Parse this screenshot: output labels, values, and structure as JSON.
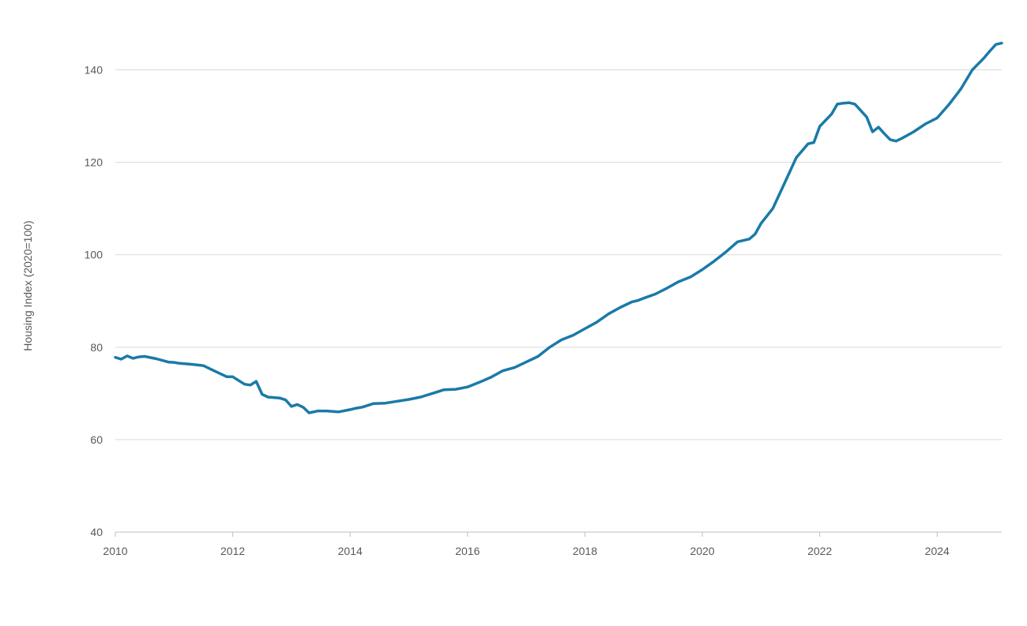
{
  "colors": {
    "series": "#1a7aa8",
    "grid": "#d9d9d9",
    "text": "#595959"
  },
  "chart_data": {
    "type": "line",
    "title": "",
    "xlabel": "",
    "ylabel": "Housing Index (2020=100)",
    "xlim": [
      2010,
      2025.1
    ],
    "ylim": [
      40,
      150
    ],
    "x_ticks": [
      2010,
      2012,
      2014,
      2016,
      2018,
      2020,
      2022,
      2024
    ],
    "y_ticks": [
      40,
      60,
      80,
      100,
      120,
      140
    ],
    "grid": "horizontal",
    "legend": "none",
    "series": [
      {
        "x": [
          2010.0,
          2010.1,
          2010.2,
          2010.3,
          2010.4,
          2010.5,
          2010.7,
          2010.9,
          2011.0,
          2011.1,
          2011.3,
          2011.5,
          2011.7,
          2011.9,
          2012.0,
          2012.2,
          2012.3,
          2012.4,
          2012.5,
          2012.6,
          2012.8,
          2012.9,
          2013.0,
          2013.1,
          2013.2,
          2013.3,
          2013.45,
          2013.6,
          2013.8,
          2014.0,
          2014.1,
          2014.2,
          2014.4,
          2014.6,
          2014.8,
          2015.0,
          2015.2,
          2015.4,
          2015.6,
          2015.8,
          2016.0,
          2016.2,
          2016.4,
          2016.6,
          2016.8,
          2017.0,
          2017.2,
          2017.4,
          2017.6,
          2017.8,
          2018.0,
          2018.2,
          2018.4,
          2018.6,
          2018.8,
          2018.9,
          2019.0,
          2019.2,
          2019.4,
          2019.6,
          2019.8,
          2020.0,
          2020.2,
          2020.4,
          2020.6,
          2020.8,
          2020.9,
          2021.0,
          2021.2,
          2021.4,
          2021.6,
          2021.8,
          2021.9,
          2022.0,
          2022.2,
          2022.3,
          2022.4,
          2022.5,
          2022.6,
          2022.8,
          2022.9,
          2023.0,
          2023.1,
          2023.2,
          2023.3,
          2023.4,
          2023.6,
          2023.8,
          2024.0,
          2024.2,
          2024.4,
          2024.6,
          2024.8,
          2024.9,
          2025.0,
          2025.1
        ],
        "values": [
          77.8,
          77.4,
          78.1,
          77.6,
          77.9,
          78.0,
          77.5,
          76.8,
          76.7,
          76.5,
          76.3,
          76.0,
          74.8,
          73.6,
          73.6,
          72.0,
          71.8,
          72.6,
          69.8,
          69.2,
          69.0,
          68.6,
          67.2,
          67.6,
          67.0,
          65.8,
          66.2,
          66.2,
          66.0,
          66.5,
          66.8,
          67.0,
          67.8,
          67.9,
          68.3,
          68.7,
          69.2,
          70.0,
          70.8,
          70.9,
          71.4,
          72.4,
          73.5,
          74.9,
          75.6,
          76.8,
          78.0,
          80.0,
          81.6,
          82.6,
          84.0,
          85.4,
          87.2,
          88.6,
          89.8,
          90.1,
          90.6,
          91.5,
          92.8,
          94.2,
          95.2,
          96.8,
          98.6,
          100.6,
          102.8,
          103.4,
          104.5,
          106.8,
          110.0,
          115.5,
          121.0,
          124.0,
          124.3,
          127.8,
          130.4,
          132.6,
          132.8,
          132.9,
          132.6,
          129.8,
          126.6,
          127.6,
          126.2,
          124.9,
          124.6,
          125.2,
          126.6,
          128.3,
          129.6,
          132.5,
          135.8,
          140.0,
          142.6,
          144.1,
          145.5,
          145.8
        ]
      }
    ]
  }
}
